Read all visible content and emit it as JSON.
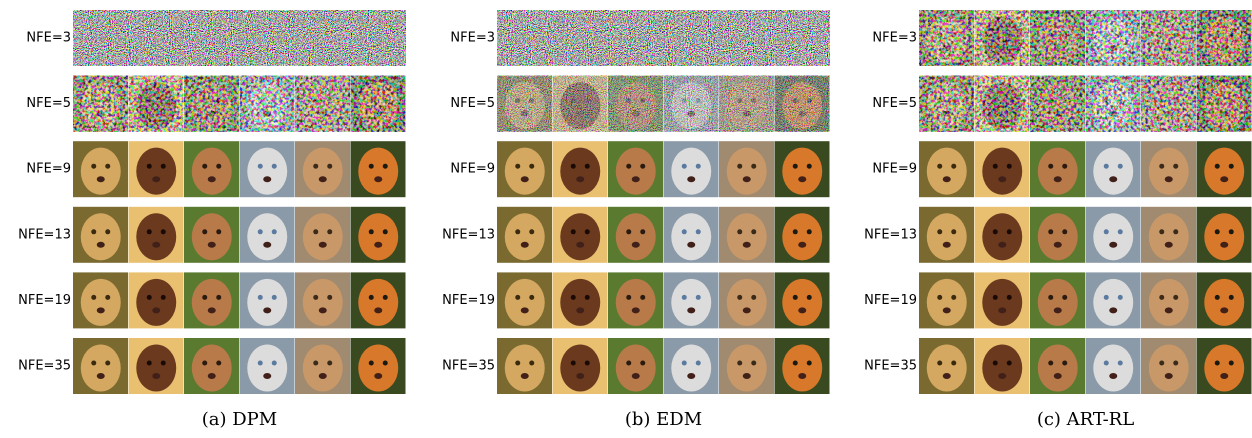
{
  "panels": [
    {
      "caption": "(a) DPM",
      "rows": [
        "NFE=3",
        "NFE=5",
        "NFE=9",
        "NFE=13",
        "NFE=19",
        "NFE=35"
      ]
    },
    {
      "caption": "(b) EDM",
      "rows": [
        "NFE=3",
        "NFE=5",
        "NFE=9",
        "NFE=13",
        "NFE=19",
        "NFE=35"
      ]
    },
    {
      "caption": "(c) ART-RL",
      "rows": [
        "NFE=3",
        "NFE=5",
        "NFE=9",
        "NFE=13",
        "NFE=19",
        "NFE=35"
      ]
    }
  ]
}
